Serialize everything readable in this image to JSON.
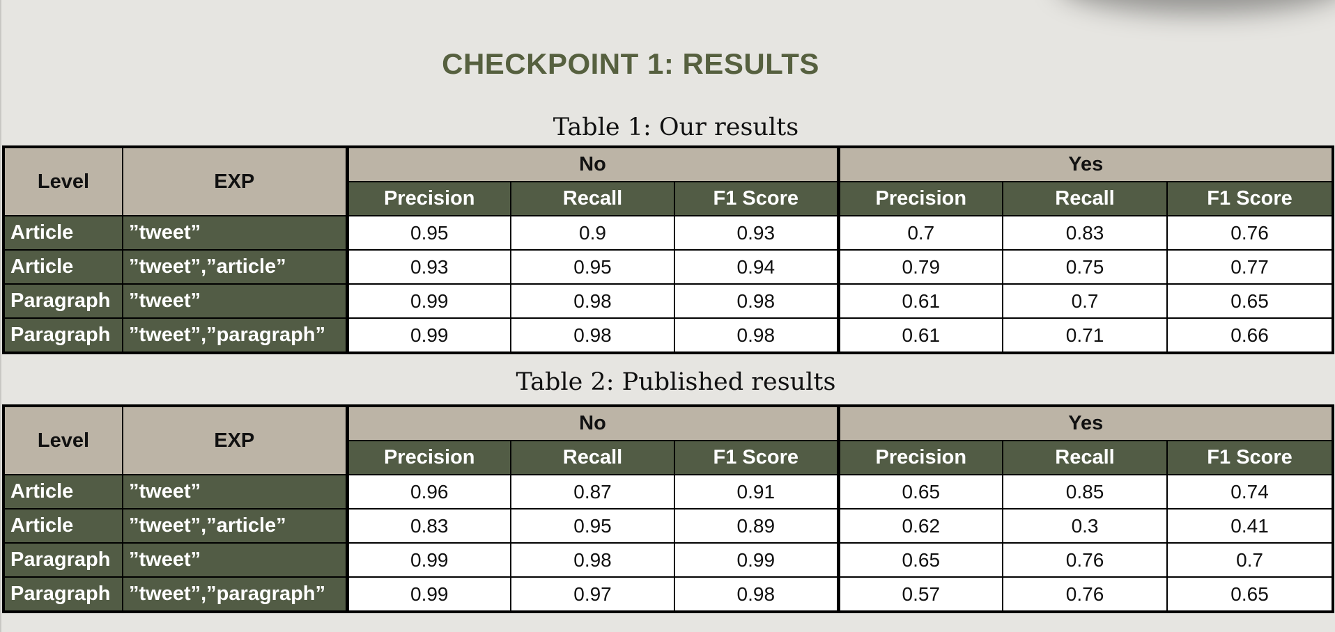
{
  "page": {
    "title": "CHECKPOINT 1: RESULTS",
    "title_color": "#56603f",
    "background": "#e6e5e1"
  },
  "colors": {
    "header_tan": "#bcb4a6",
    "header_green": "#525c45",
    "cell_bg": "#ffffff"
  },
  "tables": [
    {
      "caption": "Table 1: Our results",
      "headers": {
        "level": "Level",
        "exp": "EXP",
        "group_no": "No",
        "group_yes": "Yes",
        "metrics": [
          "Precision",
          "Recall",
          "F1 Score",
          "Precision",
          "Recall",
          "F1 Score"
        ]
      },
      "rows": [
        {
          "level": "Article",
          "exp": "”tweet”",
          "values": [
            "0.95",
            "0.9",
            "0.93",
            "0.7",
            "0.83",
            "0.76"
          ]
        },
        {
          "level": "Article",
          "exp": "”tweet”,”article”",
          "values": [
            "0.93",
            "0.95",
            "0.94",
            "0.79",
            "0.75",
            "0.77"
          ]
        },
        {
          "level": "Paragraph",
          "exp": "”tweet”",
          "values": [
            "0.99",
            "0.98",
            "0.98",
            "0.61",
            "0.7",
            "0.65"
          ]
        },
        {
          "level": "Paragraph",
          "exp": "”tweet”,”paragraph”",
          "values": [
            "0.99",
            "0.98",
            "0.98",
            "0.61",
            "0.71",
            "0.66"
          ]
        }
      ]
    },
    {
      "caption": "Table 2: Published results",
      "headers": {
        "level": "Level",
        "exp": "EXP",
        "group_no": "No",
        "group_yes": "Yes",
        "metrics": [
          "Precision",
          "Recall",
          "F1 Score",
          "Precision",
          "Recall",
          "F1 Score"
        ]
      },
      "rows": [
        {
          "level": "Article",
          "exp": "”tweet”",
          "values": [
            "0.96",
            "0.87",
            "0.91",
            "0.65",
            "0.85",
            "0.74"
          ]
        },
        {
          "level": "Article",
          "exp": "”tweet”,”article”",
          "values": [
            "0.83",
            "0.95",
            "0.89",
            "0.62",
            "0.3",
            "0.41"
          ]
        },
        {
          "level": "Paragraph",
          "exp": "”tweet”",
          "values": [
            "0.99",
            "0.98",
            "0.99",
            "0.65",
            "0.76",
            "0.7"
          ]
        },
        {
          "level": "Paragraph",
          "exp": "”tweet”,”paragraph”",
          "values": [
            "0.99",
            "0.97",
            "0.98",
            "0.57",
            "0.76",
            "0.65"
          ]
        }
      ]
    }
  ]
}
